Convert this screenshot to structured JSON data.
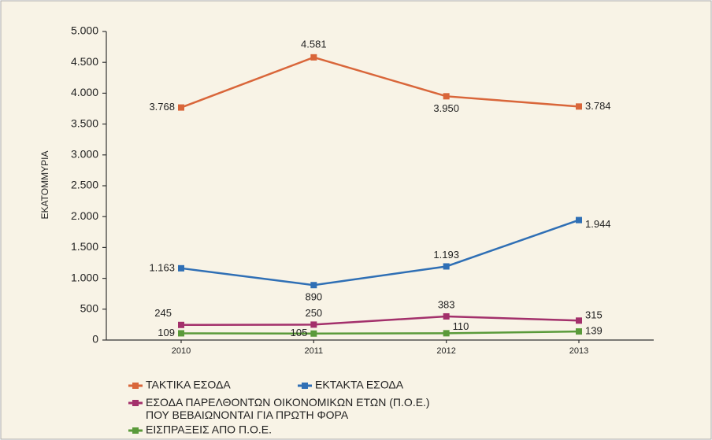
{
  "chart_data": {
    "type": "line",
    "y_label": "ΕΚΑΤΟΜΜΥΡΙΑ",
    "categories": [
      "2010",
      "2011",
      "2012",
      "2013"
    ],
    "series": [
      {
        "name": "ΤΑΚΤΙΚΑ ΕΣΟΔΑ",
        "color": "#d9663a",
        "values": [
          3768,
          4581,
          3950,
          3784
        ],
        "value_labels": [
          "3.768",
          "4.581",
          "3.950",
          "3.784"
        ]
      },
      {
        "name": "ΕΚΤΑΚΤΑ ΕΣΟΔΑ",
        "color": "#2f6fb5",
        "values": [
          1163,
          890,
          1193,
          1944
        ],
        "value_labels": [
          "1.163",
          "890",
          "1.193",
          "1.944"
        ]
      },
      {
        "name": "ΕΣΟΔΑ ΠΑΡΕΛΘΟΝΤΩΝ ΟΙΚΟΝΟΜΙΚΩΝ ΕΤΩΝ (Π.Ο.Ε.)\nΠΟΥ ΒΕΒΑΙΩΝΟΝΤΑΙ ΓΙΑ ΠΡΩΤΗ ΦΟΡΑ",
        "color": "#a3306b",
        "values": [
          245,
          250,
          383,
          315
        ],
        "value_labels": [
          "245",
          "250",
          "383",
          "315"
        ]
      },
      {
        "name": "ΕΙΣΠΡΑΞΕΙΣ ΑΠΟ Π.Ο.Ε.",
        "color": "#5a9a3a",
        "values": [
          109,
          105,
          110,
          139
        ],
        "value_labels": [
          "109",
          "105",
          "110",
          "139"
        ]
      }
    ],
    "ylim": [
      0,
      5000
    ],
    "yticks": [
      0,
      500,
      {
        "value": 1000,
        "label": "1.000"
      },
      {
        "value": 1500,
        "label": "1.500"
      },
      {
        "value": 2000,
        "label": "2.000"
      },
      {
        "value": 2500,
        "label": "2.500"
      },
      {
        "value": 3000,
        "label": "3.000"
      },
      {
        "value": 3500,
        "label": "3.500"
      },
      {
        "value": 4000,
        "label": "4.000"
      },
      {
        "value": 4500,
        "label": "4.500"
      },
      {
        "value": 5000,
        "label": "5.000"
      }
    ],
    "grid": false
  }
}
